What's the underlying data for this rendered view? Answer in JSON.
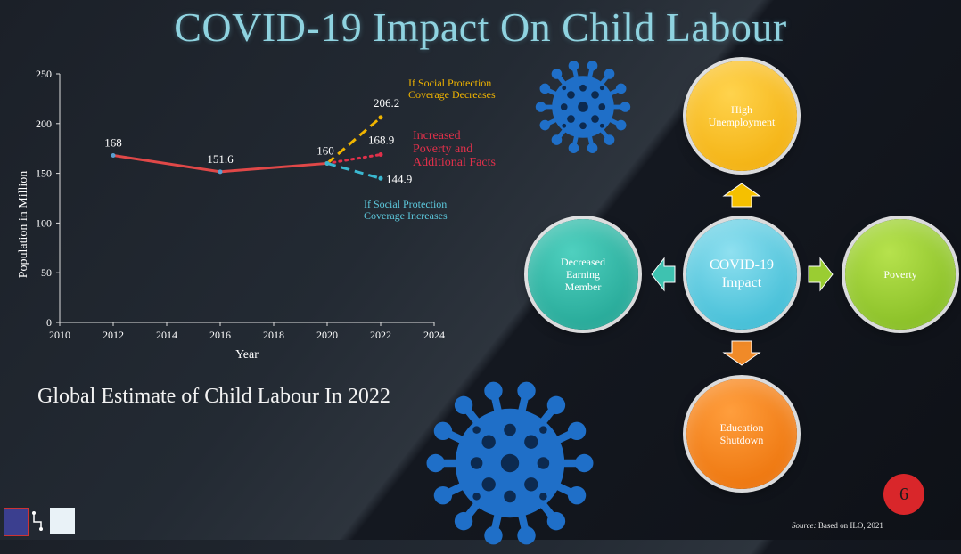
{
  "title": "COVID-19 Impact On Child Labour",
  "subtitle": "Global Estimate of Child Labour In 2022",
  "chart_data": {
    "type": "line",
    "xlabel": "Year",
    "ylabel": "Population in Million",
    "xlim": [
      2010,
      2024
    ],
    "ylim": [
      0,
      250
    ],
    "xticks": [
      2010,
      2012,
      2014,
      2016,
      2018,
      2020,
      2022,
      2024
    ],
    "yticks": [
      0,
      50,
      100,
      150,
      200,
      250
    ],
    "grid": false,
    "series": [
      {
        "name": "",
        "style": "solid",
        "color": "#e04848",
        "x": [
          2012,
          2016,
          2020
        ],
        "y": [
          168,
          151.6,
          160
        ],
        "labels": [
          "168",
          "151.6",
          "160"
        ]
      },
      {
        "name": "If Social Protection Coverage Decreases",
        "style": "dashed",
        "color": "#f0b400",
        "x": [
          2020,
          2022
        ],
        "y": [
          160,
          206.2
        ],
        "labels": [
          "",
          "206.2"
        ]
      },
      {
        "name": "Increased Poverty and Additional Facts",
        "style": "dotted",
        "color": "#e0304a",
        "x": [
          2020,
          2022
        ],
        "y": [
          160,
          168.9
        ],
        "labels": [
          "",
          "168.9"
        ]
      },
      {
        "name": "If Social Protection Coverage Increases",
        "style": "dashed",
        "color": "#3ab7d0",
        "x": [
          2020,
          2022
        ],
        "y": [
          160,
          144.9
        ],
        "labels": [
          "",
          "144.9"
        ]
      }
    ],
    "annotations": [
      {
        "text": "If Social Protection\nCoverage Decreases",
        "color": "#f0b400"
      },
      {
        "text": "Increased\nPoverty and\nAdditional Facts",
        "color": "#e0304a"
      },
      {
        "text": "If Social Protection\nCoverage Increases",
        "color": "#5cc8dc"
      }
    ]
  },
  "diagram": {
    "center": "COVID-19\nImpact",
    "top": "High\nUnemployment",
    "left": "Decreased\nEarning\nMember",
    "right": "Poverty",
    "bottom": "Education\nShutdown"
  },
  "page_number": "6",
  "source_label": "Source:",
  "source_text": "Based on ILO, 2021",
  "colors": {
    "virus": "#1f6fc8",
    "arrow_top": "#f5c000",
    "arrow_left": "#3ec2b0",
    "arrow_right": "#9acd32",
    "arrow_bottom": "#f08a28"
  }
}
